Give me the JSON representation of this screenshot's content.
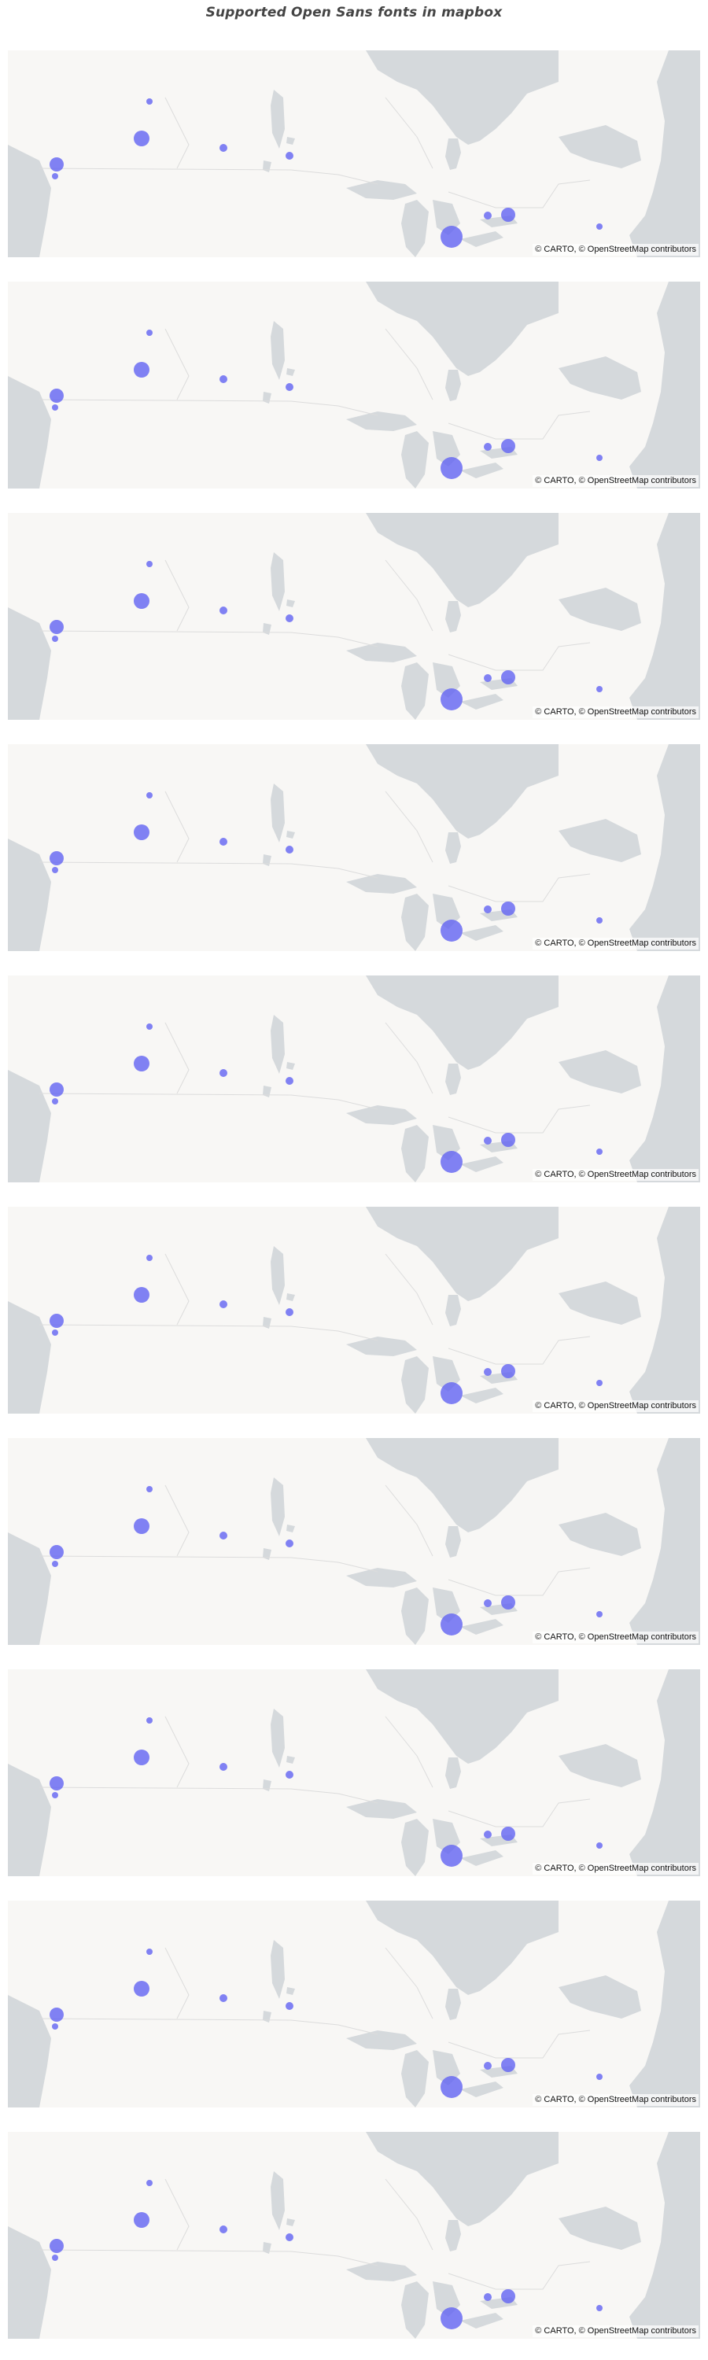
{
  "title": "Supported Open Sans fonts in mapbox",
  "map": {
    "attribution": "© CARTO, © OpenStreetMap contributors",
    "colors": {
      "land": "#f8f7f5",
      "water": "#d5d9dc",
      "boundary": "#dcdcdc",
      "marker": "#6163f2"
    },
    "panel_count": 10
  }
}
